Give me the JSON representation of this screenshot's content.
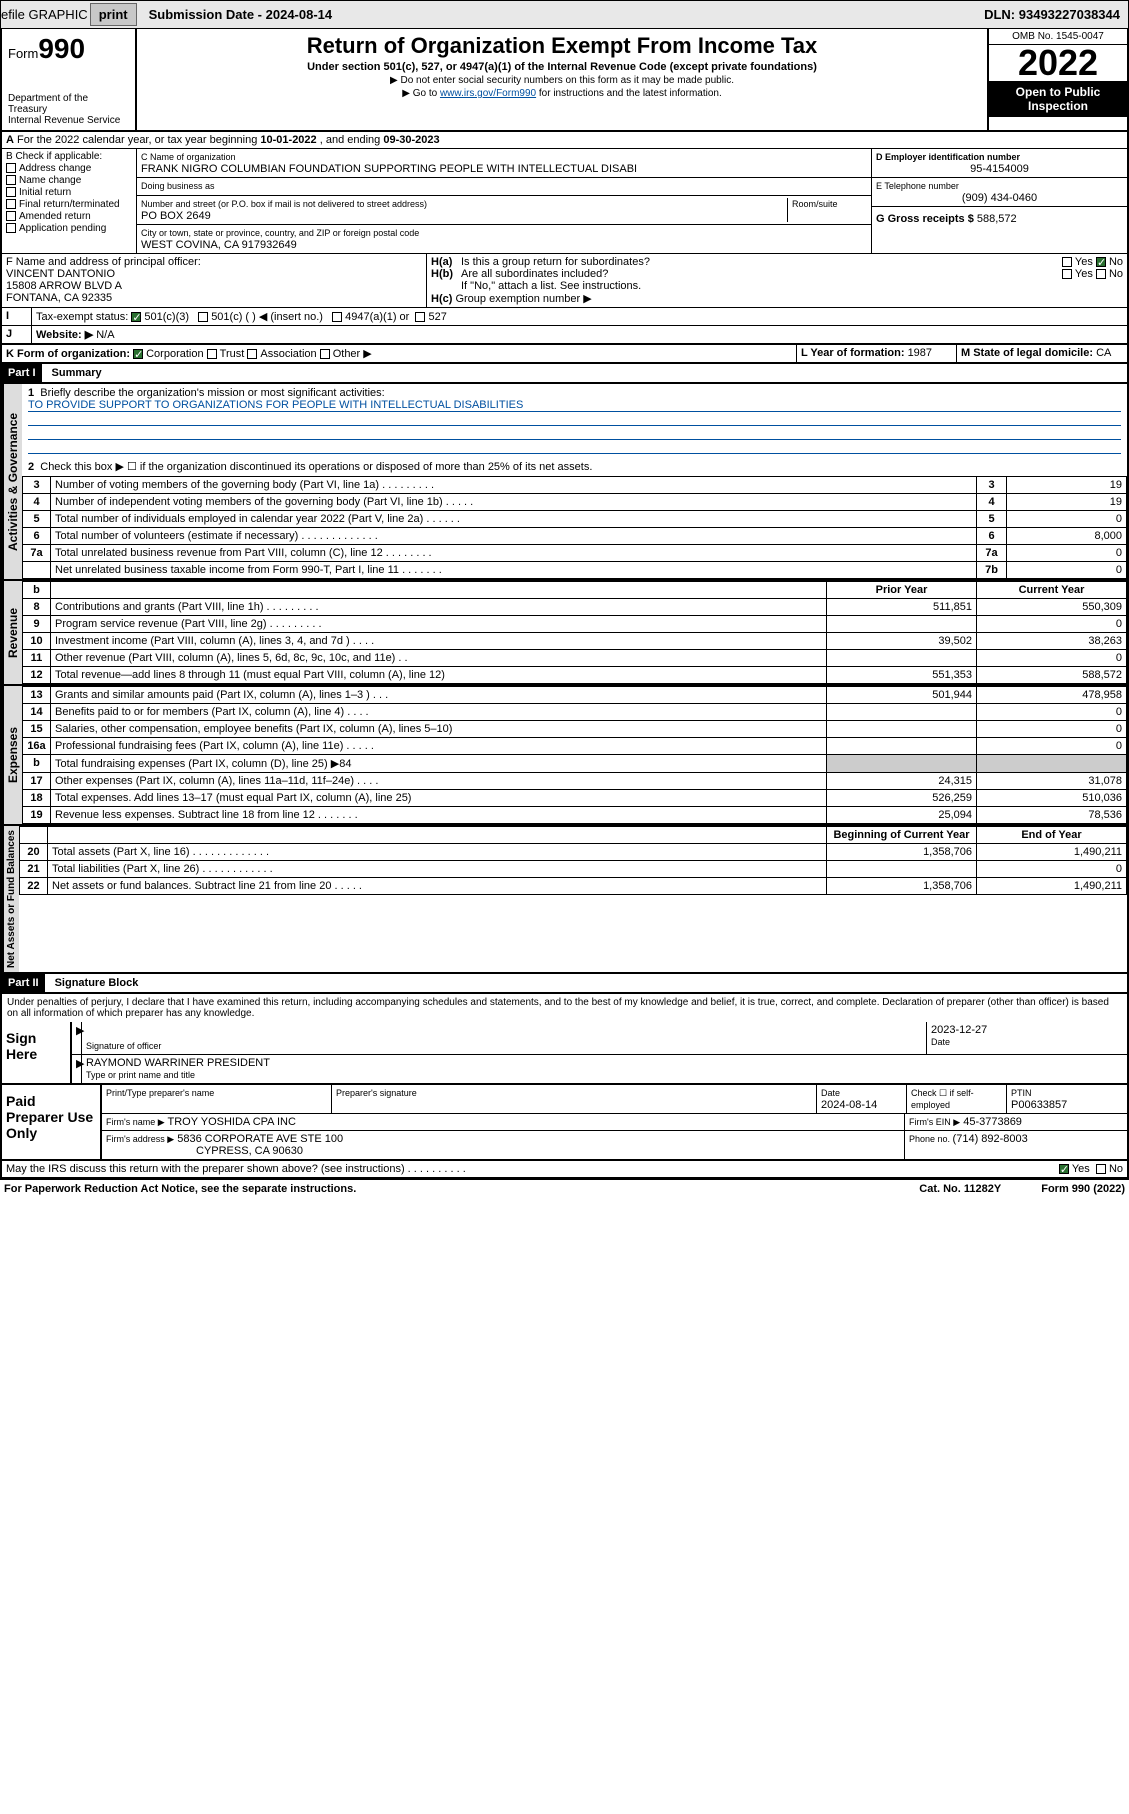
{
  "topbar": {
    "efile": "efile GRAPHIC",
    "print": "print",
    "subdate_lbl": "Submission Date - ",
    "subdate": "2024-08-14",
    "dln_lbl": "DLN: ",
    "dln": "93493227038344"
  },
  "hdr": {
    "form": "Form",
    "formno": "990",
    "dept": "Department of the Treasury",
    "irs": "Internal Revenue Service",
    "title": "Return of Organization Exempt From Income Tax",
    "sub": "Under section 501(c), 527, or 4947(a)(1) of the Internal Revenue Code (except private foundations)",
    "note1": "▶ Do not enter social security numbers on this form as it may be made public.",
    "note2_pre": "▶ Go to ",
    "note2_link": "www.irs.gov/Form990",
    "note2_post": " for instructions and the latest information.",
    "omb": "OMB No. 1545-0047",
    "year": "2022",
    "open": "Open to Public Inspection"
  },
  "A": {
    "text": "For the 2022 calendar year, or tax year beginning ",
    "begin": "10-01-2022",
    "mid": " , and ending ",
    "end": "09-30-2023"
  },
  "B": {
    "lbl": "B Check if applicable:",
    "items": [
      "Address change",
      "Name change",
      "Initial return",
      "Final return/terminated",
      "Amended return",
      "Application pending"
    ]
  },
  "C": {
    "name_lbl": "C Name of organization",
    "name": "FRANK NIGRO COLUMBIAN FOUNDATION SUPPORTING PEOPLE WITH INTELLECTUAL DISABI",
    "dba_lbl": "Doing business as",
    "dba": "",
    "addr_lbl": "Number and street (or P.O. box if mail is not delivered to street address)",
    "room_lbl": "Room/suite",
    "addr": "PO BOX 2649",
    "city_lbl": "City or town, state or province, country, and ZIP or foreign postal code",
    "city": "WEST COVINA, CA  917932649"
  },
  "D": {
    "lbl": "D Employer identification number",
    "val": "95-4154009"
  },
  "E": {
    "lbl": "E Telephone number",
    "val": "(909) 434-0460"
  },
  "G": {
    "lbl": "G Gross receipts $ ",
    "val": "588,572"
  },
  "F": {
    "lbl": "F  Name and address of principal officer:",
    "l1": "VINCENT DANTONIO",
    "l2": "15808 ARROW BLVD A",
    "l3": "FONTANA, CA  92335"
  },
  "H": {
    "a": "Is this a group return for subordinates?",
    "a_yes": "Yes",
    "a_no": "No",
    "b": "Are all subordinates included?",
    "b_yes": "Yes",
    "b_no": "No",
    "b_note": "If \"No,\" attach a list. See instructions.",
    "c": "Group exemption number ▶"
  },
  "I": {
    "lbl": "Tax-exempt status:",
    "c1": "501(c)(3)",
    "c2": "501(c) (   ) ◀ (insert no.)",
    "c3": "4947(a)(1) or",
    "c4": "527"
  },
  "J": {
    "lbl": "Website: ▶",
    "val": "N/A"
  },
  "K": {
    "lbl": "K Form of organization:",
    "c1": "Corporation",
    "c2": "Trust",
    "c3": "Association",
    "c4": "Other ▶"
  },
  "L": {
    "lbl": "L Year of formation: ",
    "val": "1987"
  },
  "M": {
    "lbl": "M State of legal domicile: ",
    "val": "CA"
  },
  "part1": {
    "bar": "Part I",
    "title": "Summary"
  },
  "gov": {
    "l1": "Briefly describe the organization's mission or most significant activities:",
    "mission": "TO PROVIDE SUPPORT TO ORGANIZATIONS FOR PEOPLE WITH INTELLECTUAL DISABILITIES",
    "l2": "Check this box ▶ ☐  if the organization discontinued its operations or disposed of more than 25% of its net assets.",
    "rows": [
      {
        "n": "3",
        "t": "Number of voting members of the governing body (Part VI, line 1a)   .     .     .     .     .     .     .     .     .",
        "rn": "3",
        "v": "19"
      },
      {
        "n": "4",
        "t": "Number of independent voting members of the governing body (Part VI, line 1b)   .     .     .     .     .",
        "rn": "4",
        "v": "19"
      },
      {
        "n": "5",
        "t": "Total number of individuals employed in calendar year 2022 (Part V, line 2a)   .     .     .     .     .     .",
        "rn": "5",
        "v": "0"
      },
      {
        "n": "6",
        "t": "Total number of volunteers (estimate if necessary)   .     .     .     .     .     .     .     .     .     .     .     .     .",
        "rn": "6",
        "v": "8,000"
      },
      {
        "n": "7a",
        "t": "Total unrelated business revenue from Part VIII, column (C), line 12   .     .     .     .     .     .     .     .",
        "rn": "7a",
        "v": "0"
      },
      {
        "n": "",
        "t": "Net unrelated business taxable income from Form 990-T, Part I, line 11   .     .     .     .     .     .     .",
        "rn": "7b",
        "v": "0"
      }
    ]
  },
  "py": "Prior Year",
  "cy": "Current Year",
  "rev": {
    "tab": "Revenue",
    "rows": [
      {
        "n": "8",
        "t": "Contributions and grants (Part VIII, line 1h)   .     .     .     .     .     .     .     .     .",
        "p": "511,851",
        "c": "550,309"
      },
      {
        "n": "9",
        "t": "Program service revenue (Part VIII, line 2g)   .     .     .     .     .     .     .     .     .",
        "p": "",
        "c": "0"
      },
      {
        "n": "10",
        "t": "Investment income (Part VIII, column (A), lines 3, 4, and 7d )   .     .     .     .",
        "p": "39,502",
        "c": "38,263"
      },
      {
        "n": "11",
        "t": "Other revenue (Part VIII, column (A), lines 5, 6d, 8c, 9c, 10c, and 11e)   .     .",
        "p": "",
        "c": "0"
      },
      {
        "n": "12",
        "t": "Total revenue—add lines 8 through 11 (must equal Part VIII, column (A), line 12)",
        "p": "551,353",
        "c": "588,572"
      }
    ]
  },
  "exp": {
    "tab": "Expenses",
    "rows": [
      {
        "n": "13",
        "t": "Grants and similar amounts paid (Part IX, column (A), lines 1–3 )   .     .     .",
        "p": "501,944",
        "c": "478,958"
      },
      {
        "n": "14",
        "t": "Benefits paid to or for members (Part IX, column (A), line 4)   .     .     .     .",
        "p": "",
        "c": "0"
      },
      {
        "n": "15",
        "t": "Salaries, other compensation, employee benefits (Part IX, column (A), lines 5–10)",
        "p": "",
        "c": "0"
      },
      {
        "n": "16a",
        "t": "Professional fundraising fees (Part IX, column (A), line 11e)   .     .     .     .     .",
        "p": "",
        "c": "0"
      },
      {
        "n": "b",
        "t": "Total fundraising expenses (Part IX, column (D), line 25) ▶84",
        "shade": true
      },
      {
        "n": "17",
        "t": "Other expenses (Part IX, column (A), lines 11a–11d, 11f–24e)   .     .     .     .",
        "p": "24,315",
        "c": "31,078"
      },
      {
        "n": "18",
        "t": "Total expenses. Add lines 13–17 (must equal Part IX, column (A), line 25)",
        "p": "526,259",
        "c": "510,036"
      },
      {
        "n": "19",
        "t": "Revenue less expenses. Subtract line 18 from line 12   .     .     .     .     .     .     .",
        "p": "25,094",
        "c": "78,536"
      }
    ]
  },
  "na": {
    "tab": "Net Assets or Fund Balances",
    "bcy": "Beginning of Current Year",
    "eoy": "End of Year",
    "rows": [
      {
        "n": "20",
        "t": "Total assets (Part X, line 16)   .     .     .     .     .     .     .     .     .     .     .     .     .",
        "p": "1,358,706",
        "c": "1,490,211"
      },
      {
        "n": "21",
        "t": "Total liabilities (Part X, line 26)   .     .     .     .     .     .     .     .     .     .     .     .",
        "p": "",
        "c": "0"
      },
      {
        "n": "22",
        "t": "Net assets or fund balances. Subtract line 21 from line 20   .     .     .     .     .",
        "p": "1,358,706",
        "c": "1,490,211"
      }
    ]
  },
  "part2": {
    "bar": "Part II",
    "title": "Signature Block"
  },
  "decl": "Under penalties of perjury, I declare that I have examined this return, including accompanying schedules and statements, and to the best of my knowledge and belief, it is true, correct, and complete. Declaration of preparer (other than officer) is based on all information of which preparer has any knowledge.",
  "sign": {
    "here": "Sign Here",
    "sig_lbl": "Signature of officer",
    "date_lbl": "Date",
    "date": "2023-12-27",
    "name": "RAYMOND WARRINER  PRESIDENT",
    "name_lbl": "Type or print name and title"
  },
  "paid": {
    "lbl": "Paid Preparer Use Only",
    "h1": "Print/Type preparer's name",
    "h2": "Preparer's signature",
    "h3": "Date",
    "h3v": "2024-08-14",
    "h4": "Check ☐ if self-employed",
    "h5": "PTIN",
    "ptin": "P00633857",
    "firm_lbl": "Firm's name   ▶",
    "firm": "TROY YOSHIDA CPA INC",
    "ein_lbl": "Firm's EIN ▶",
    "ein": "45-3773869",
    "addr_lbl": "Firm's address ▶",
    "addr1": "5836 CORPORATE AVE STE 100",
    "addr2": "CYPRESS, CA  90630",
    "ph_lbl": "Phone no. ",
    "ph": "(714) 892-8003"
  },
  "may": "May the IRS discuss this return with the preparer shown above? (see instructions)   .     .     .     .     .     .     .     .     .     .",
  "may_yes": "Yes",
  "may_no": "No",
  "foot": {
    "l": "For Paperwork Reduction Act Notice, see the separate instructions.",
    "c": "Cat. No. 11282Y",
    "r": "Form 990 (2022)"
  }
}
